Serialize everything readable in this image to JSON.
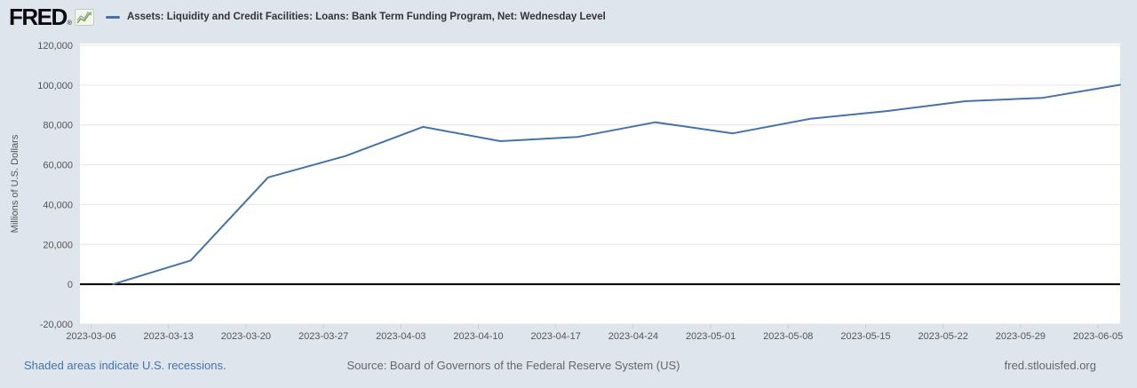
{
  "header": {
    "logo_text": "FRED",
    "registered_mark": "®"
  },
  "footer": {
    "recessions_note": "Shaded areas indicate U.S. recessions.",
    "source": "Source: Board of Governors of the Federal Reserve System (US)",
    "site": "fred.stlouisfed.org"
  },
  "colors": {
    "background": "#dfe5ed",
    "plot_background": "#ffffff",
    "gridline": "#e6e6e6",
    "zero_line": "#000000",
    "series_line": "#4572a7",
    "axis_text": "#555555",
    "legend_text": "#333333",
    "footer_text": "#666666",
    "link_blue": "#4573a7",
    "tick_mark": "#cccccc"
  },
  "chart_data": {
    "type": "line",
    "title": "Assets: Liquidity and Credit Facilities: Loans: Bank Term Funding Program, Net: Wednesday Level",
    "xlabel": "",
    "ylabel": "Millions of U.S. Dollars",
    "grid": true,
    "legend_position": "top",
    "y_axis": {
      "min": -20000,
      "max": 120000,
      "ticks": [
        {
          "value": 120000,
          "label": "120,000"
        },
        {
          "value": 100000,
          "label": "100,000"
        },
        {
          "value": 80000,
          "label": "80,000"
        },
        {
          "value": 60000,
          "label": "60,000"
        },
        {
          "value": 40000,
          "label": "40,000"
        },
        {
          "value": 20000,
          "label": "20,000"
        },
        {
          "value": 0,
          "label": "0"
        },
        {
          "value": -20000,
          "label": "-20,000"
        }
      ]
    },
    "x_axis": {
      "min_date": "2023-03-05",
      "max_date": "2023-06-07",
      "ticks": [
        "2023-03-06",
        "2023-03-13",
        "2023-03-20",
        "2023-03-27",
        "2023-04-03",
        "2023-04-10",
        "2023-04-17",
        "2023-04-24",
        "2023-05-01",
        "2023-05-08",
        "2023-05-15",
        "2023-05-22",
        "2023-05-29",
        "2023-06-05"
      ]
    },
    "series": [
      {
        "name": "Assets: Liquidity and Credit Facilities: Loans: Bank Term Funding Program, Net: Wednesday Level",
        "color": "#4572a7",
        "points": [
          {
            "date": "2023-03-08",
            "value": 0
          },
          {
            "date": "2023-03-15",
            "value": 11943
          },
          {
            "date": "2023-03-22",
            "value": 53669
          },
          {
            "date": "2023-03-29",
            "value": 64403
          },
          {
            "date": "2023-04-05",
            "value": 79021
          },
          {
            "date": "2023-04-12",
            "value": 71837
          },
          {
            "date": "2023-04-19",
            "value": 73982
          },
          {
            "date": "2023-04-26",
            "value": 81327
          },
          {
            "date": "2023-05-03",
            "value": 75778
          },
          {
            "date": "2023-05-10",
            "value": 83101
          },
          {
            "date": "2023-05-17",
            "value": 87006
          },
          {
            "date": "2023-05-24",
            "value": 91907
          },
          {
            "date": "2023-05-31",
            "value": 93615
          },
          {
            "date": "2023-06-07",
            "value": 100161
          }
        ]
      }
    ]
  }
}
